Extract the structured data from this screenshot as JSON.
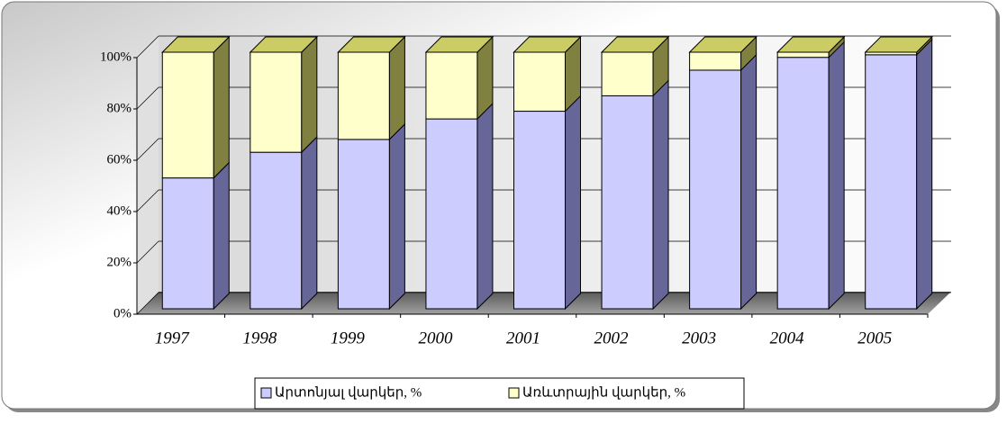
{
  "chart_data": {
    "type": "bar",
    "categories": [
      "1997",
      "1998",
      "1999",
      "2000",
      "2001",
      "2002",
      "2003",
      "2004",
      "2005"
    ],
    "series": [
      {
        "name": "Արտոնյալ վարկեր, %",
        "color": "#ccccff",
        "values": [
          51,
          61,
          66,
          74,
          77,
          83,
          93,
          98,
          99
        ]
      },
      {
        "name": "Առևտրային վարկեր, %",
        "color": "#ffffcc",
        "values": [
          49,
          39,
          34,
          26,
          23,
          17,
          7,
          2,
          1
        ]
      }
    ],
    "ylim": [
      0,
      100
    ],
    "yticks": [
      {
        "value": 0,
        "label": "0%"
      },
      {
        "value": 20,
        "label": "20%"
      },
      {
        "value": 40,
        "label": "40%"
      },
      {
        "value": 60,
        "label": "60%"
      },
      {
        "value": 80,
        "label": "80%"
      },
      {
        "value": 100,
        "label": "100%"
      }
    ],
    "grid": true,
    "stacked": true,
    "legend": "bottom"
  }
}
